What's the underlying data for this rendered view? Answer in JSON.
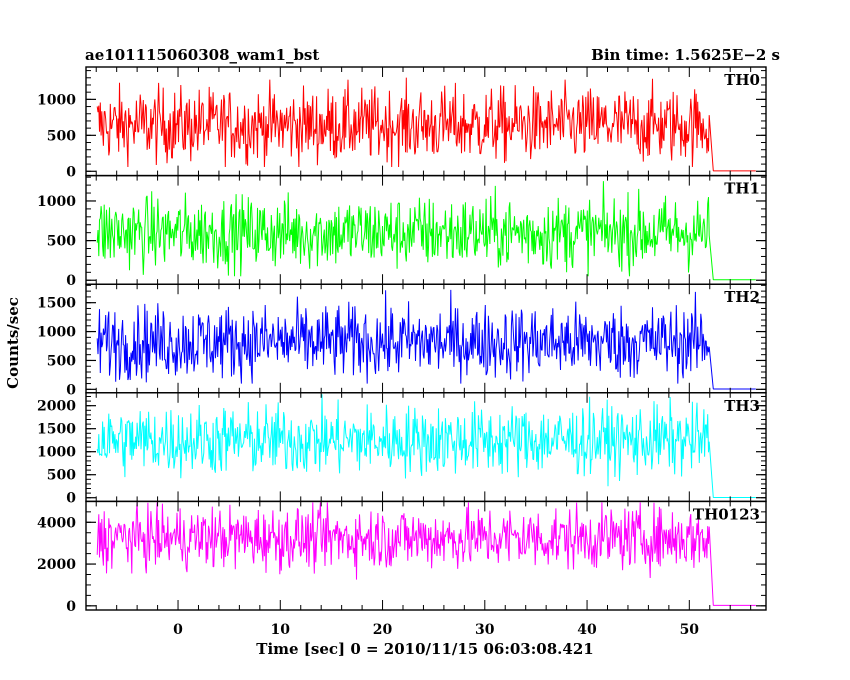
{
  "header": {
    "left_title": "ae101115060308_wam1_bst",
    "right_title": "Bin time: 1.5625E−2 s"
  },
  "chart_data": {
    "type": "line",
    "title": "ae101115060308_wam1_bst",
    "subtitle": "Bin time: 1.5625E−2 s",
    "xlabel": "Time [sec] 0 = 2010/11/15 06:03:08.421",
    "ylabel": "Counts/sec",
    "xlim": [
      -9,
      57.5
    ],
    "x_ticks": [
      0,
      10,
      20,
      30,
      40,
      50
    ],
    "x_tick_labels": [
      "0",
      "10",
      "20",
      "30",
      "40",
      "50"
    ],
    "bin_time": 0.015625,
    "grid": false,
    "legend": "none",
    "series": [
      {
        "name": "TH0",
        "color": "#ff0000",
        "ylim": [
          -60,
          1450
        ],
        "y_ticks": [
          0,
          500,
          1000
        ],
        "y_tick_labels": [
          "0",
          "500",
          "1000"
        ],
        "x_start": -7.9,
        "x_drop": 52.0,
        "x_end": 56.5,
        "mean": 640,
        "min": 60,
        "max": 1420,
        "tail": 5
      },
      {
        "name": "TH1",
        "color": "#00ff00",
        "ylim": [
          -50,
          1320
        ],
        "y_ticks": [
          0,
          500,
          1000
        ],
        "y_tick_labels": [
          "0",
          "500",
          "1000"
        ],
        "x_start": -7.9,
        "x_drop": 52.0,
        "x_end": 56.5,
        "mean": 600,
        "min": 50,
        "max": 1250,
        "tail": 5
      },
      {
        "name": "TH2",
        "color": "#0000ff",
        "ylim": [
          -60,
          1820
        ],
        "y_ticks": [
          0,
          500,
          1000,
          1500
        ],
        "y_tick_labels": [
          "0",
          "500",
          "1000",
          "1500"
        ],
        "x_start": -7.9,
        "x_drop": 52.0,
        "x_end": 56.5,
        "mean": 820,
        "min": 100,
        "max": 1780,
        "tail": 5
      },
      {
        "name": "TH3",
        "color": "#00ffff",
        "ylim": [
          -80,
          2280
        ],
        "y_ticks": [
          0,
          500,
          1000,
          1500,
          2000
        ],
        "y_tick_labels": [
          "0",
          "500",
          "1000",
          "1500",
          "2000"
        ],
        "x_start": -7.9,
        "x_drop": 52.0,
        "x_end": 56.5,
        "mean": 1250,
        "min": 250,
        "max": 2250,
        "tail": 5
      },
      {
        "name": "TH0123",
        "color": "#ff00ff",
        "ylim": [
          -200,
          5000
        ],
        "y_ticks": [
          0,
          2000,
          4000
        ],
        "y_tick_labels": [
          "0",
          "2000",
          "4000"
        ],
        "x_start": -7.9,
        "x_drop": 52.0,
        "x_end": 56.5,
        "mean": 3250,
        "min": 1000,
        "max": 4950,
        "tail": 20
      }
    ]
  }
}
